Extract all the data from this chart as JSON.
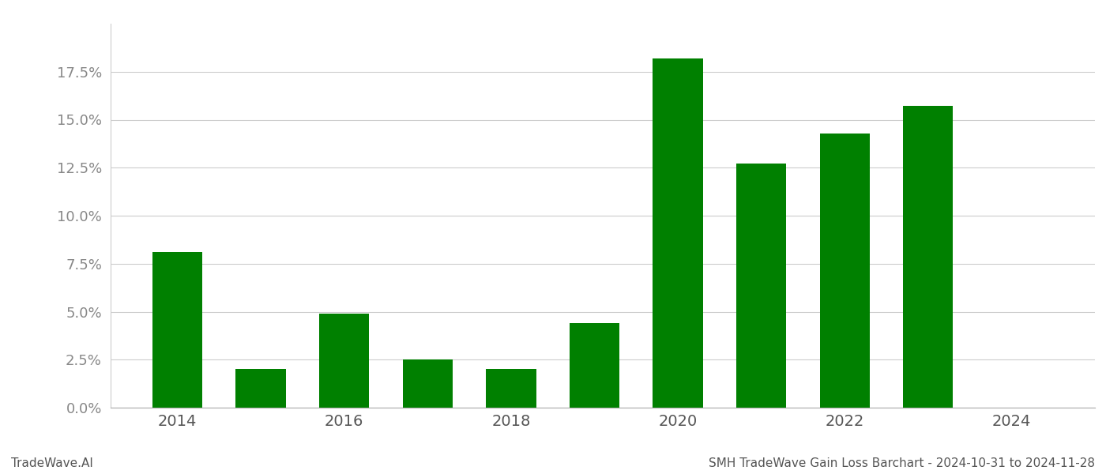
{
  "years": [
    2014,
    2015,
    2016,
    2017,
    2018,
    2019,
    2020,
    2021,
    2022,
    2023,
    2024
  ],
  "values": [
    0.081,
    0.02,
    0.049,
    0.025,
    0.02,
    0.044,
    0.182,
    0.127,
    0.143,
    0.157,
    0.0
  ],
  "bar_color": "#008000",
  "background_color": "#ffffff",
  "grid_color": "#cccccc",
  "ylabel_color": "#888888",
  "xlabel_color": "#555555",
  "title_text": "SMH TradeWave Gain Loss Barchart - 2024-10-31 to 2024-11-28",
  "watermark_text": "TradeWave.AI",
  "ylim": [
    0,
    0.2
  ],
  "figsize": [
    14.0,
    6.0
  ],
  "dpi": 100
}
